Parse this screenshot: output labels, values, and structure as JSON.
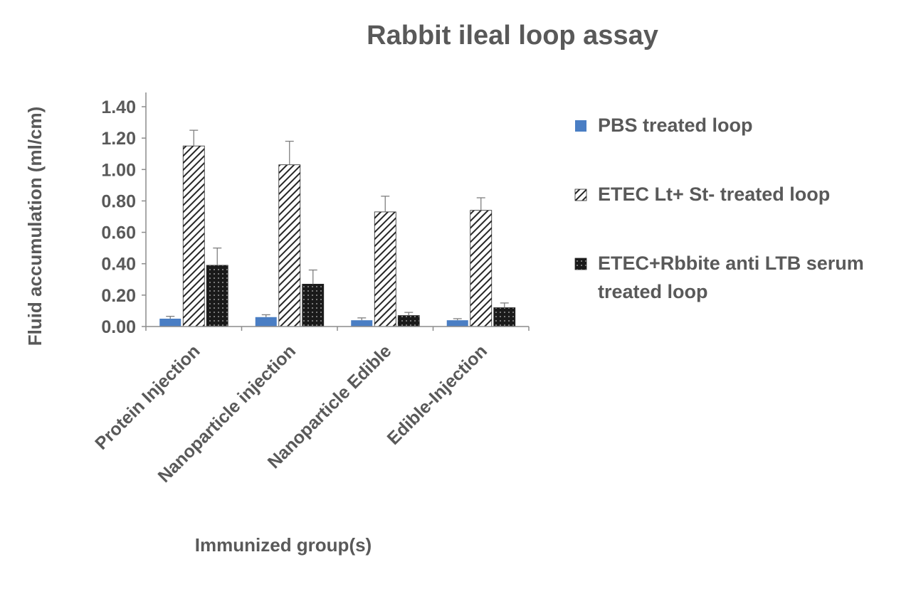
{
  "chart_data": {
    "type": "bar",
    "title": "Rabbit ileal loop assay",
    "xlabel": "Immunized group(s)",
    "ylabel": "Fluid accumulation (ml/cm)",
    "ylim": [
      0,
      1.4
    ],
    "ytick_step": 0.2,
    "ytick_labels": [
      "0.00",
      "0.20",
      "0.40",
      "0.60",
      "0.80",
      "1.00",
      "1.20",
      "1.40"
    ],
    "grid": false,
    "legend_position": "right",
    "categories": [
      "Protein Injection",
      "Nanoparticle injection",
      "Nanoparticle Edible",
      "Edible-Injection"
    ],
    "series": [
      {
        "name": "PBS treated loop",
        "legend_lines": [
          "PBS treated loop"
        ],
        "values": [
          0.05,
          0.06,
          0.04,
          0.04
        ],
        "errors": [
          0.015,
          0.015,
          0.015,
          0.01
        ],
        "fill": "solid",
        "color": "#4a7ec4"
      },
      {
        "name": "ETEC Lt+ St- treated loop",
        "legend_lines": [
          "ETEC Lt+ St- treated loop"
        ],
        "values": [
          1.15,
          1.03,
          0.73,
          0.74
        ],
        "errors": [
          0.1,
          0.15,
          0.1,
          0.08
        ],
        "fill": "diagonal-hatch",
        "color": "#262626"
      },
      {
        "name": "ETEC+Rbbite anti LTB serum treated loop",
        "legend_lines": [
          "ETEC+Rbbite anti LTB serum",
          "treated loop"
        ],
        "values": [
          0.39,
          0.27,
          0.07,
          0.12
        ],
        "errors": [
          0.11,
          0.09,
          0.02,
          0.03
        ],
        "fill": "dark-grid",
        "color": "#1a1a1a"
      }
    ]
  }
}
